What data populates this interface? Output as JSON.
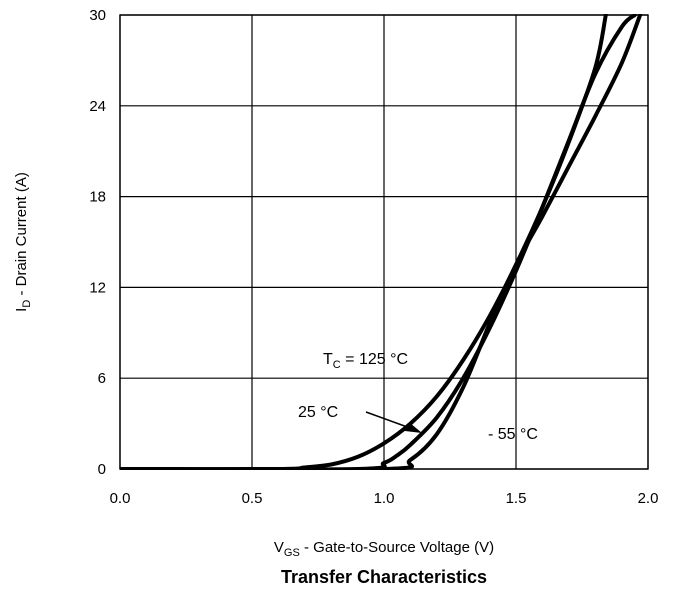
{
  "chart_data": {
    "type": "line",
    "caption": "Transfer Characteristics",
    "xlabel": {
      "parts": [
        {
          "text": "V",
          "sub": false
        },
        {
          "text": "GS",
          "sub": true
        },
        {
          "text": "  -  Gate-to-Source Voltage (V)",
          "sub": false
        }
      ]
    },
    "ylabel": {
      "parts": [
        {
          "text": "I",
          "sub": false
        },
        {
          "text": "D",
          "sub": true
        },
        {
          "text": "  -  Drain Current (A)",
          "sub": false
        }
      ]
    },
    "xlim": [
      0,
      2.0
    ],
    "ylim": [
      0,
      30
    ],
    "xticks": [
      {
        "value": 0,
        "label": "0.0"
      },
      {
        "value": 0.5,
        "label": "0.5"
      },
      {
        "value": 1.0,
        "label": "1.0"
      },
      {
        "value": 1.5,
        "label": "1.5"
      },
      {
        "value": 2.0,
        "label": "2.0"
      }
    ],
    "yticks": [
      {
        "value": 0,
        "label": "0"
      },
      {
        "value": 6,
        "label": "6"
      },
      {
        "value": 12,
        "label": "12"
      },
      {
        "value": 18,
        "label": "18"
      },
      {
        "value": 24,
        "label": "24"
      },
      {
        "value": 30,
        "label": "30"
      }
    ],
    "grid": true,
    "series": [
      {
        "key": "tc125",
        "x": [
          0,
          0.6,
          0.7,
          0.8,
          0.9,
          1.0,
          1.1,
          1.2,
          1.3,
          1.4,
          1.5,
          1.6,
          1.7,
          1.8,
          1.84
        ],
        "y": [
          0,
          0,
          0.1,
          0.3,
          0.8,
          1.7,
          3.0,
          4.8,
          7.2,
          10.1,
          13.5,
          17.3,
          21.6,
          26.5,
          30
        ]
      },
      {
        "key": "tc25",
        "x": [
          0,
          0.9,
          1.0,
          1.05,
          1.1,
          1.2,
          1.3,
          1.4,
          1.5,
          1.6,
          1.7,
          1.8,
          1.9,
          1.95
        ],
        "y": [
          0,
          0,
          0.4,
          0.9,
          1.6,
          3.4,
          6.0,
          9.3,
          13.1,
          17.3,
          21.7,
          26.1,
          29.2,
          30
        ]
      },
      {
        "key": "tcm55",
        "x": [
          0,
          1.0,
          1.1,
          1.2,
          1.3,
          1.4,
          1.5,
          1.6,
          1.7,
          1.8,
          1.9,
          1.97
        ],
        "y": [
          0,
          0,
          0.6,
          2.3,
          5.4,
          9.6,
          13.5,
          16.7,
          20.0,
          23.3,
          26.8,
          30
        ]
      }
    ],
    "annotations": [
      {
        "key": "tc125",
        "parts": [
          {
            "text": "T",
            "sub": false
          },
          {
            "text": "C",
            "sub": true
          },
          {
            "text": " = 125 °C",
            "sub": false
          }
        ]
      },
      {
        "key": "tc25",
        "parts": [
          {
            "text": "25 °C",
            "sub": false
          }
        ]
      },
      {
        "key": "tcm55",
        "parts": [
          {
            "text": "- 55 °C",
            "sub": false
          }
        ]
      }
    ]
  }
}
